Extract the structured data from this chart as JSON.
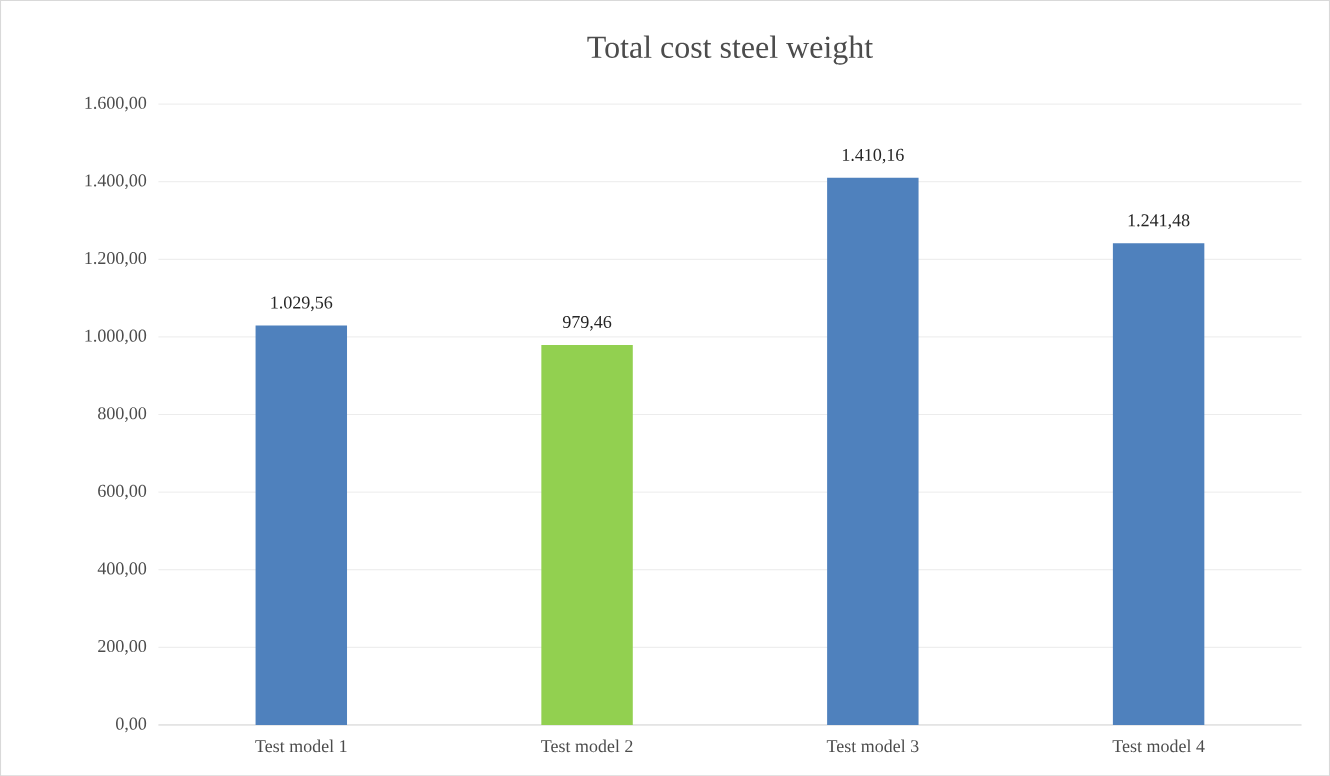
{
  "chart_data": {
    "type": "bar",
    "title": "Total cost steel weight",
    "categories": [
      "Test model 1",
      "Test model 2",
      "Test model 3",
      "Test model 4"
    ],
    "values": [
      1029.56,
      979.46,
      1410.16,
      1241.48
    ],
    "colors": [
      "#4f81bd",
      "#92d050",
      "#4f81bd",
      "#4f81bd"
    ],
    "value_labels": [
      "1.029,56",
      "979,46",
      "1.410,16",
      "1.241,48"
    ],
    "ylim": [
      0,
      1600
    ],
    "yticks": [
      {
        "value": 0,
        "label": "0,00"
      },
      {
        "value": 200,
        "label": "200,00"
      },
      {
        "value": 400,
        "label": "400,00"
      },
      {
        "value": 600,
        "label": "600,00"
      },
      {
        "value": 800,
        "label": "800,00"
      },
      {
        "value": 1000,
        "label": "1.000,00"
      },
      {
        "value": 1200,
        "label": "1.200,00"
      },
      {
        "value": 1400,
        "label": "1.400,00"
      },
      {
        "value": 1600,
        "label": "1.600,00"
      }
    ],
    "grid": "y"
  }
}
